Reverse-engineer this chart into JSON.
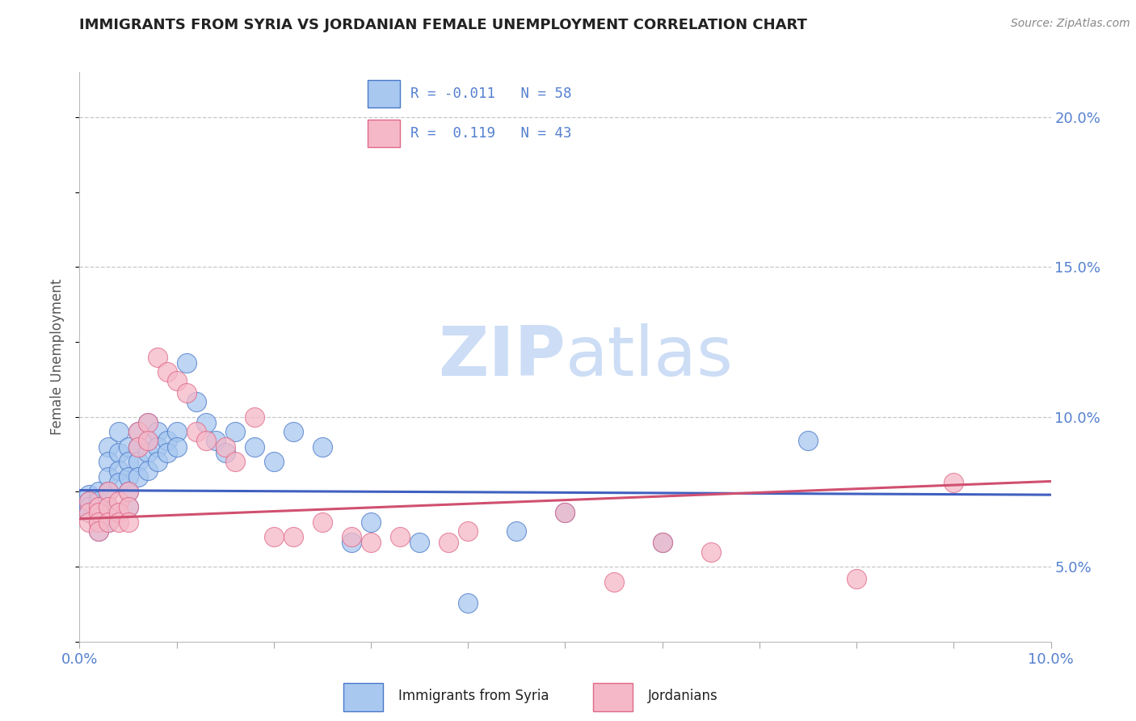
{
  "title": "IMMIGRANTS FROM SYRIA VS JORDANIAN FEMALE UNEMPLOYMENT CORRELATION CHART",
  "source": "Source: ZipAtlas.com",
  "ylabel": "Female Unemployment",
  "xlim": [
    0.0,
    0.1
  ],
  "ylim": [
    0.025,
    0.215
  ],
  "xticks": [
    0.0,
    0.01,
    0.02,
    0.03,
    0.04,
    0.05,
    0.06,
    0.07,
    0.08,
    0.09,
    0.1
  ],
  "yticks": [
    0.05,
    0.1,
    0.15,
    0.2
  ],
  "ytick_labels": [
    "5.0%",
    "10.0%",
    "15.0%",
    "20.0%"
  ],
  "xtick_labels": [
    "0.0%",
    "",
    "",
    "",
    "",
    "",
    "",
    "",
    "",
    "",
    "10.0%"
  ],
  "blue_R": -0.011,
  "blue_N": 58,
  "pink_R": 0.119,
  "pink_N": 43,
  "blue_color": "#a8c8f0",
  "pink_color": "#f5b8c8",
  "blue_edge_color": "#4878c8",
  "pink_edge_color": "#e06888",
  "blue_line_color": "#4060c0",
  "pink_line_color": "#d05070",
  "grid_color": "#c8c8c8",
  "title_color": "#222222",
  "axis_tick_color": "#5580d0",
  "source_color": "#888888",
  "watermark_color": "#ccddf5",
  "background_color": "#ffffff",
  "legend_border_color": "#cccccc",
  "blue_scatter_x": [
    0.001,
    0.001,
    0.001,
    0.001,
    0.002,
    0.002,
    0.002,
    0.002,
    0.002,
    0.002,
    0.003,
    0.003,
    0.003,
    0.003,
    0.003,
    0.003,
    0.004,
    0.004,
    0.004,
    0.004,
    0.005,
    0.005,
    0.005,
    0.005,
    0.005,
    0.006,
    0.006,
    0.006,
    0.006,
    0.007,
    0.007,
    0.007,
    0.007,
    0.008,
    0.008,
    0.008,
    0.009,
    0.009,
    0.01,
    0.01,
    0.011,
    0.012,
    0.013,
    0.014,
    0.015,
    0.016,
    0.018,
    0.02,
    0.022,
    0.025,
    0.028,
    0.03,
    0.035,
    0.04,
    0.045,
    0.05,
    0.06,
    0.075
  ],
  "blue_scatter_y": [
    0.074,
    0.072,
    0.07,
    0.068,
    0.075,
    0.072,
    0.07,
    0.068,
    0.065,
    0.062,
    0.09,
    0.085,
    0.08,
    0.075,
    0.07,
    0.065,
    0.095,
    0.088,
    0.082,
    0.078,
    0.09,
    0.085,
    0.08,
    0.075,
    0.07,
    0.095,
    0.09,
    0.085,
    0.08,
    0.098,
    0.092,
    0.088,
    0.082,
    0.095,
    0.09,
    0.085,
    0.092,
    0.088,
    0.095,
    0.09,
    0.118,
    0.105,
    0.098,
    0.092,
    0.088,
    0.095,
    0.09,
    0.085,
    0.095,
    0.09,
    0.058,
    0.065,
    0.058,
    0.038,
    0.062,
    0.068,
    0.058,
    0.092
  ],
  "pink_scatter_x": [
    0.001,
    0.001,
    0.001,
    0.002,
    0.002,
    0.002,
    0.002,
    0.003,
    0.003,
    0.003,
    0.004,
    0.004,
    0.004,
    0.005,
    0.005,
    0.005,
    0.006,
    0.006,
    0.007,
    0.007,
    0.008,
    0.009,
    0.01,
    0.011,
    0.012,
    0.013,
    0.015,
    0.016,
    0.018,
    0.02,
    0.022,
    0.025,
    0.028,
    0.03,
    0.033,
    0.038,
    0.04,
    0.05,
    0.055,
    0.06,
    0.065,
    0.08,
    0.09
  ],
  "pink_scatter_y": [
    0.072,
    0.068,
    0.065,
    0.07,
    0.068,
    0.065,
    0.062,
    0.075,
    0.07,
    0.065,
    0.072,
    0.068,
    0.065,
    0.075,
    0.07,
    0.065,
    0.095,
    0.09,
    0.098,
    0.092,
    0.12,
    0.115,
    0.112,
    0.108,
    0.095,
    0.092,
    0.09,
    0.085,
    0.1,
    0.06,
    0.06,
    0.065,
    0.06,
    0.058,
    0.06,
    0.058,
    0.062,
    0.068,
    0.045,
    0.058,
    0.055,
    0.046,
    0.078
  ],
  "blue_trend_x": [
    0.0,
    0.1
  ],
  "blue_trend_y": [
    0.0755,
    0.074
  ],
  "pink_trend_x": [
    0.0,
    0.1
  ],
  "pink_trend_y": [
    0.066,
    0.0785
  ]
}
